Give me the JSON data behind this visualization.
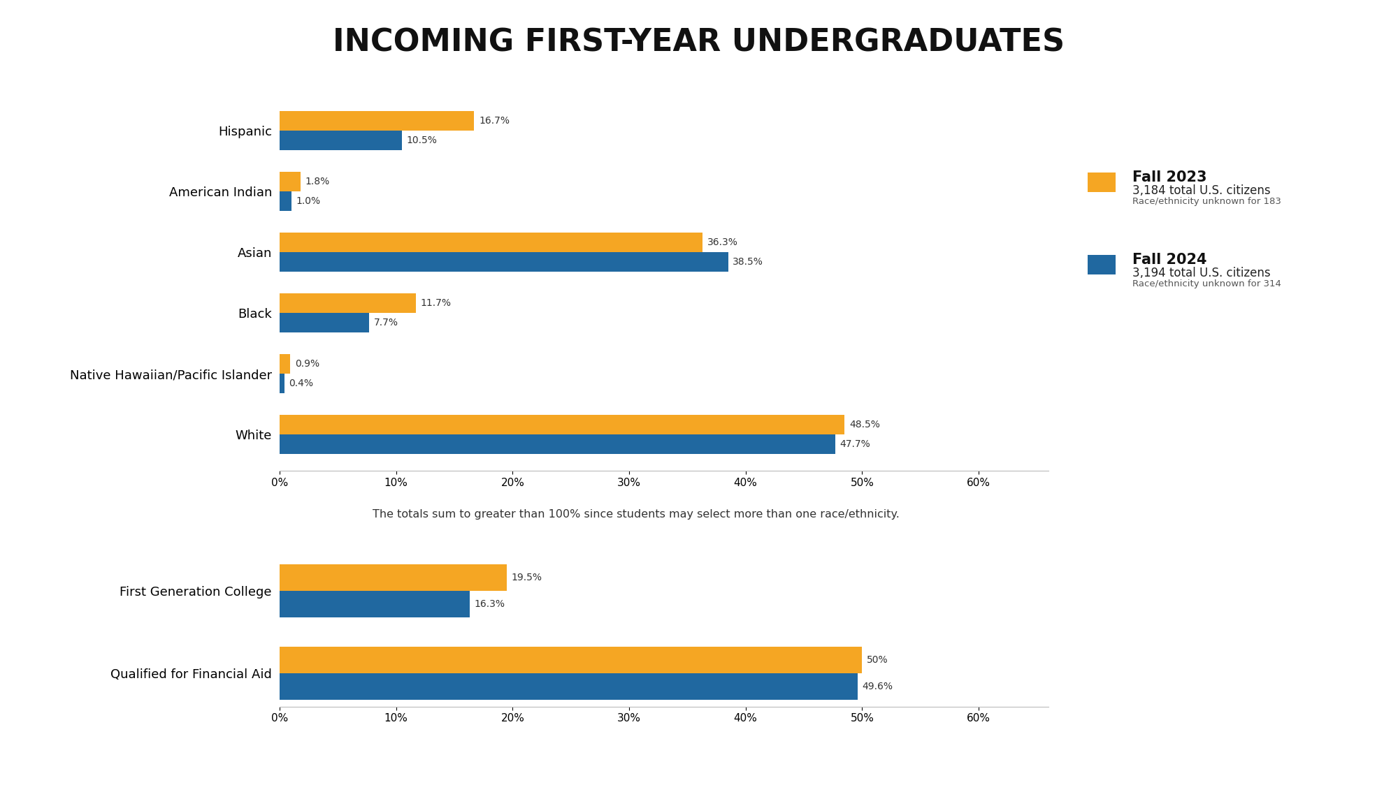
{
  "title": "INCOMING FIRST-YEAR UNDERGRADUATES",
  "background_color": "#ffffff",
  "orange": "#F5A623",
  "blue": "#2068A0",
  "race_categories": [
    "White",
    "Native Hawaiian/Pacific Islander",
    "Black",
    "Asian",
    "American Indian",
    "Hispanic"
  ],
  "race_fall2023": [
    48.5,
    0.9,
    11.7,
    36.3,
    1.8,
    16.7
  ],
  "race_fall2024": [
    47.7,
    0.4,
    7.7,
    38.5,
    1.0,
    10.5
  ],
  "race_labels2023": [
    "48.5%",
    "0.9%",
    "11.7%",
    "36.3%",
    "1.8%",
    "16.7%"
  ],
  "race_labels2024": [
    "47.7%",
    "0.4%",
    "7.7%",
    "38.5%",
    "1.0%",
    "10.5%"
  ],
  "other_categories": [
    "Qualified for Financial Aid",
    "First Generation College"
  ],
  "other_fall2023": [
    50.0,
    19.5
  ],
  "other_fall2024": [
    49.6,
    16.3
  ],
  "other_labels2023": [
    "50%",
    "19.5%"
  ],
  "other_labels2024": [
    "49.6%",
    "16.3%"
  ],
  "legend_fall2023": "Fall 2023",
  "legend_fall2024": "Fall 2024",
  "legend_sub2023": "3,184 total U.S. citizens",
  "legend_sub2023b": "Race/ethnicity unknown for 183",
  "legend_sub2024": "3,194 total U.S. citizens",
  "legend_sub2024b": "Race/ethnicity unknown for 314",
  "note": "The totals sum to greater than 100% since students may select more than one race/ethnicity.",
  "xticks": [
    0,
    10,
    20,
    30,
    40,
    50,
    60
  ]
}
